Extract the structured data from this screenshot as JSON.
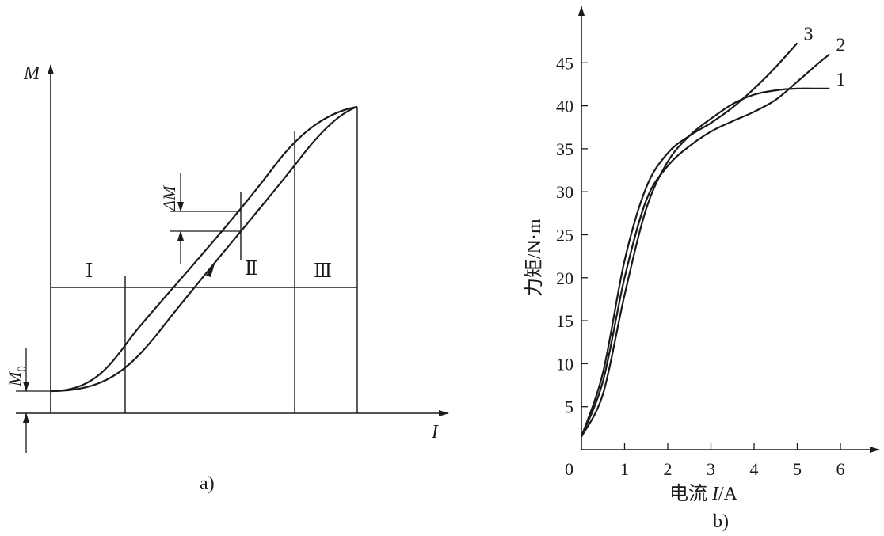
{
  "panel_a": {
    "caption": "a)",
    "y_label": "M",
    "x_label": "I",
    "offset_label": "M",
    "offset_sub": "0",
    "delta_label": "ΔM",
    "regions": [
      "Ⅰ",
      "Ⅱ",
      "Ⅲ"
    ]
  },
  "panel_b": {
    "caption": "b)",
    "y_label": "力矩/N·m",
    "x_label_pre": "电流 ",
    "x_label_var": "I",
    "x_label_post": "/A"
  },
  "chart_data": [
    {
      "type": "line",
      "panel": "a",
      "description_free": true,
      "x": [
        0,
        0.1,
        0.2,
        0.3,
        0.4,
        0.5,
        0.6,
        0.7,
        0.8,
        0.9,
        1.0
      ],
      "series": [
        {
          "values": [
            0.12,
            0.15,
            0.25,
            0.38,
            0.5,
            0.62,
            0.74,
            0.86,
            0.94,
            0.98,
            1.0
          ]
        },
        {
          "values": [
            0.12,
            0.13,
            0.2,
            0.31,
            0.43,
            0.55,
            0.67,
            0.79,
            0.9,
            0.97,
            1.0
          ]
        }
      ],
      "xlabel": "I",
      "ylabel": "M"
    },
    {
      "type": "line",
      "panel": "b",
      "x": [
        0,
        0.5,
        1.0,
        1.5,
        2.0,
        2.5,
        3.0,
        3.5,
        4.0,
        4.5,
        5.0,
        5.5,
        5.75
      ],
      "series": [
        {
          "name": "1",
          "values": [
            1.5,
            6.5,
            18,
            28,
            33.5,
            36.5,
            38.5,
            40.2,
            41.3,
            41.8,
            42.0,
            42.0,
            42.0
          ]
        },
        {
          "name": "2",
          "values": [
            1.5,
            8,
            20,
            29,
            33,
            35.3,
            37.0,
            38.2,
            39.3,
            40.7,
            42.8,
            45.0,
            46.0
          ]
        },
        {
          "name": "3",
          "values": [
            1.5,
            9,
            22,
            30.5,
            34.5,
            36.5,
            38.0,
            39.8,
            42.0,
            44.5,
            47.3,
            null,
            null
          ]
        }
      ],
      "x_ticks": [
        "0",
        "1",
        "2",
        "3",
        "4",
        "5",
        "6"
      ],
      "y_ticks": [
        "5",
        "10",
        "15",
        "20",
        "25",
        "30",
        "35",
        "40",
        "45"
      ],
      "xlim": [
        0,
        6.5
      ],
      "ylim": [
        0,
        50
      ],
      "xlabel": "电流 I/A",
      "ylabel": "力矩/N·m",
      "grid": false
    }
  ]
}
